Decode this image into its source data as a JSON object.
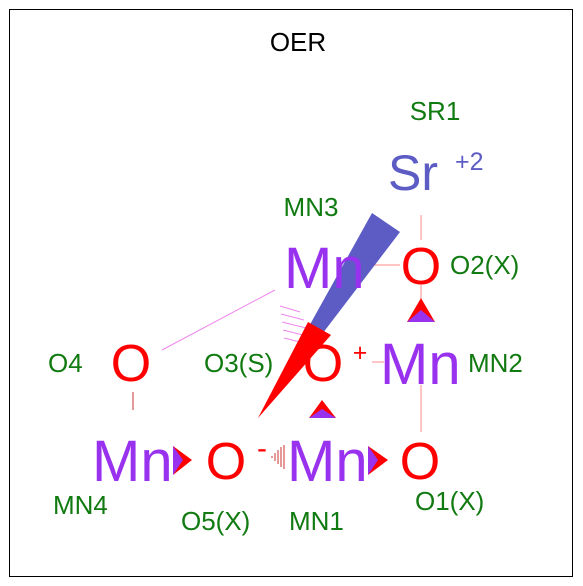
{
  "title": "OER",
  "colors": {
    "oxygen": "#ff0000",
    "manganese": "#9932ee",
    "strontium": "#5c5cc4",
    "label": "#117a11",
    "bond": "#ff8888"
  },
  "atoms": {
    "sr": {
      "symbol": "Sr",
      "charge": "+2",
      "label": "SR1"
    },
    "mn3": {
      "symbol": "Mn",
      "label": "MN3"
    },
    "o2": {
      "symbol": "O",
      "label": "O2(X)"
    },
    "o4": {
      "symbol": "O",
      "label": "O4"
    },
    "o3": {
      "symbol": "O",
      "charge": "+",
      "label": "O3(S)"
    },
    "mn2": {
      "symbol": "Mn",
      "label": "MN2"
    },
    "mn4": {
      "symbol": "Mn",
      "label": "MN4"
    },
    "o5": {
      "symbol": "O",
      "charge": "-",
      "label": "O5(X)"
    },
    "mn1": {
      "symbol": "Mn",
      "label": "MN1"
    },
    "o1": {
      "symbol": "O",
      "label": "O1(X)"
    }
  }
}
